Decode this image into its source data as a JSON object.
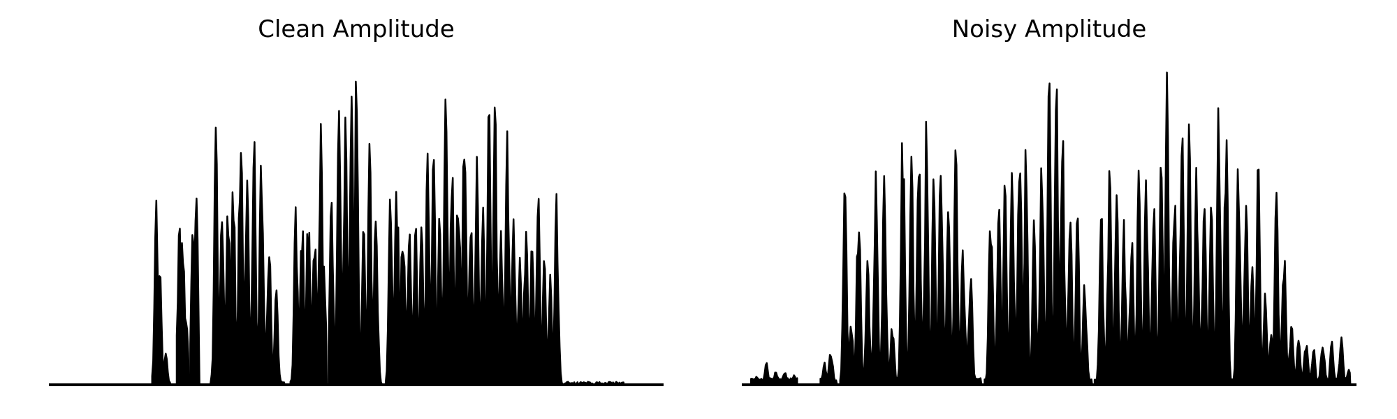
{
  "chart_data": [
    {
      "type": "area",
      "title": "Clean Amplitude",
      "xlabel": "",
      "ylabel": "",
      "grid": false,
      "axes": "off",
      "color": "#000000",
      "ylim": [
        0,
        1.0
      ],
      "bursts": [
        {
          "start": 0.168,
          "end": 0.198,
          "peaks": [
            [
              0.175,
              0.58
            ],
            [
              0.18,
              0.4
            ],
            [
              0.19,
              0.1
            ]
          ]
        },
        {
          "start": 0.208,
          "end": 0.228,
          "peaks": [
            [
              0.212,
              0.53
            ],
            [
              0.218,
              0.51
            ],
            [
              0.224,
              0.2
            ]
          ]
        },
        {
          "start": 0.23,
          "end": 0.245,
          "peaks": [
            [
              0.235,
              0.64
            ],
            [
              0.24,
              0.59
            ]
          ]
        },
        {
          "start": 0.263,
          "end": 0.384,
          "peaks": [
            [
              0.272,
              0.84
            ],
            [
              0.282,
              0.6
            ],
            [
              0.292,
              0.65
            ],
            [
              0.3,
              0.67
            ],
            [
              0.312,
              0.91
            ],
            [
              0.322,
              0.75
            ],
            [
              0.334,
              0.78
            ],
            [
              0.346,
              0.82
            ],
            [
              0.358,
              0.5
            ],
            [
              0.37,
              0.3
            ]
          ]
        },
        {
          "start": 0.393,
          "end": 0.452,
          "peaks": [
            [
              0.402,
              0.6
            ],
            [
              0.412,
              0.55
            ],
            [
              0.422,
              0.57
            ],
            [
              0.432,
              0.56
            ],
            [
              0.442,
              0.88
            ],
            [
              0.448,
              0.4
            ]
          ]
        },
        {
          "start": 0.455,
          "end": 0.542,
          "peaks": [
            [
              0.46,
              0.62
            ],
            [
              0.472,
              0.86
            ],
            [
              0.482,
              0.9
            ],
            [
              0.492,
              0.99
            ],
            [
              0.5,
              0.98
            ],
            [
              0.512,
              0.5
            ],
            [
              0.522,
              0.77
            ],
            [
              0.532,
              0.58
            ]
          ]
        },
        {
          "start": 0.548,
          "end": 0.935,
          "peaks": [
            [
              0.556,
              0.65
            ],
            [
              0.566,
              0.72
            ],
            [
              0.576,
              0.58
            ],
            [
              0.586,
              0.55
            ],
            [
              0.596,
              0.56
            ],
            [
              0.606,
              0.52
            ],
            [
              0.616,
              0.73
            ],
            [
              0.626,
              0.75
            ],
            [
              0.636,
              0.56
            ],
            [
              0.646,
              0.98
            ],
            [
              0.656,
              0.7
            ],
            [
              0.666,
              0.76
            ],
            [
              0.676,
              0.85
            ],
            [
              0.686,
              0.58
            ],
            [
              0.696,
              0.72
            ],
            [
              0.706,
              0.57
            ],
            [
              0.716,
              0.89
            ],
            [
              0.726,
              0.9
            ],
            [
              0.736,
              0.5
            ],
            [
              0.746,
              0.8
            ],
            [
              0.756,
              0.52
            ],
            [
              0.766,
              0.4
            ],
            [
              0.776,
              0.58
            ],
            [
              0.786,
              0.45
            ],
            [
              0.796,
              0.62
            ],
            [
              0.806,
              0.4
            ],
            [
              0.816,
              0.35
            ],
            [
              0.826,
              0.6
            ]
          ]
        }
      ]
    },
    {
      "type": "area",
      "title": "Noisy Amplitude",
      "xlabel": "",
      "ylabel": "",
      "grid": false,
      "axes": "off",
      "color": "#000000",
      "ylim": [
        0,
        1.0
      ],
      "noise_floor": 0.012,
      "bursts": [
        {
          "start": 0.015,
          "end": 0.09,
          "peaks": [
            [
              0.025,
              0.03
            ],
            [
              0.04,
              0.07
            ],
            [
              0.055,
              0.04
            ],
            [
              0.07,
              0.04
            ],
            [
              0.085,
              0.03
            ]
          ]
        },
        {
          "start": 0.128,
          "end": 0.155,
          "peaks": [
            [
              0.135,
              0.07
            ],
            [
              0.145,
              0.12
            ]
          ]
        },
        {
          "start": 0.16,
          "end": 0.252,
          "peaks": [
            [
              0.168,
              0.66
            ],
            [
              0.178,
              0.2
            ],
            [
              0.19,
              0.64
            ],
            [
              0.205,
              0.4
            ],
            [
              0.218,
              0.67
            ],
            [
              0.232,
              0.7
            ],
            [
              0.245,
              0.2
            ]
          ]
        },
        {
          "start": 0.252,
          "end": 0.39,
          "peaks": [
            [
              0.262,
              0.87
            ],
            [
              0.276,
              0.72
            ],
            [
              0.288,
              0.76
            ],
            [
              0.3,
              0.83
            ],
            [
              0.312,
              0.65
            ],
            [
              0.324,
              0.82
            ],
            [
              0.336,
              0.55
            ],
            [
              0.348,
              0.75
            ],
            [
              0.36,
              0.5
            ],
            [
              0.372,
              0.4
            ]
          ]
        },
        {
          "start": 0.395,
          "end": 0.57,
          "peaks": [
            [
              0.405,
              0.66
            ],
            [
              0.418,
              0.58
            ],
            [
              0.428,
              0.64
            ],
            [
              0.44,
              0.7
            ],
            [
              0.452,
              0.86
            ],
            [
              0.462,
              0.75
            ],
            [
              0.476,
              0.55
            ],
            [
              0.488,
              0.72
            ],
            [
              0.5,
              0.99
            ],
            [
              0.512,
              0.95
            ],
            [
              0.522,
              0.8
            ],
            [
              0.534,
              0.6
            ],
            [
              0.546,
              0.54
            ],
            [
              0.558,
              0.35
            ]
          ]
        },
        {
          "start": 0.574,
          "end": 0.8,
          "peaks": [
            [
              0.585,
              0.55
            ],
            [
              0.598,
              0.72
            ],
            [
              0.61,
              0.6
            ],
            [
              0.622,
              0.52
            ],
            [
              0.634,
              0.5
            ],
            [
              0.646,
              0.68
            ],
            [
              0.658,
              0.7
            ],
            [
              0.67,
              0.6
            ],
            [
              0.682,
              0.7
            ],
            [
              0.692,
              0.99
            ],
            [
              0.704,
              0.62
            ],
            [
              0.716,
              0.88
            ],
            [
              0.728,
              0.84
            ],
            [
              0.74,
              0.7
            ],
            [
              0.752,
              0.65
            ],
            [
              0.764,
              0.58
            ],
            [
              0.776,
              0.91
            ],
            [
              0.788,
              0.86
            ]
          ]
        },
        {
          "start": 0.8,
          "end": 0.99,
          "peaks": [
            [
              0.808,
              0.78
            ],
            [
              0.82,
              0.65
            ],
            [
              0.83,
              0.4
            ],
            [
              0.84,
              0.72
            ],
            [
              0.852,
              0.3
            ],
            [
              0.862,
              0.18
            ],
            [
              0.87,
              0.65
            ],
            [
              0.882,
              0.45
            ],
            [
              0.894,
              0.2
            ],
            [
              0.906,
              0.15
            ],
            [
              0.918,
              0.16
            ],
            [
              0.93,
              0.12
            ],
            [
              0.945,
              0.15
            ],
            [
              0.96,
              0.14
            ],
            [
              0.975,
              0.16
            ],
            [
              0.988,
              0.05
            ]
          ]
        }
      ]
    }
  ]
}
